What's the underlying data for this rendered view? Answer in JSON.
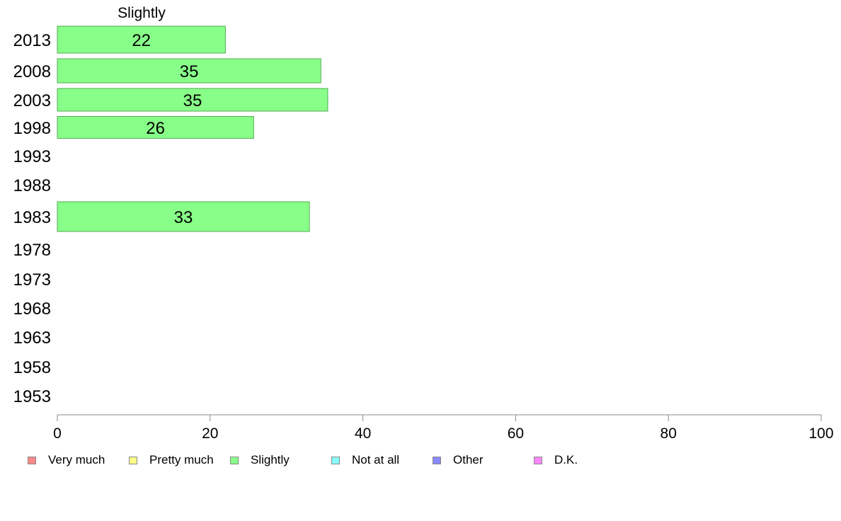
{
  "chart_data": {
    "type": "bar",
    "orientation": "horizontal",
    "series_title": "Slightly",
    "categories": [
      "2013",
      "2008",
      "2003",
      "1998",
      "1993",
      "1988",
      "1983",
      "1978",
      "1973",
      "1968",
      "1963",
      "1958",
      "1953"
    ],
    "series": [
      {
        "name": "Slightly",
        "color": "#88ff88",
        "values": [
          22,
          34.5,
          35.4,
          25.7,
          null,
          null,
          33,
          null,
          null,
          null,
          null,
          null,
          null
        ]
      }
    ],
    "value_labels": [
      "22",
      "35",
      "35",
      "26",
      "",
      "",
      "33",
      "",
      "",
      "",
      "",
      "",
      ""
    ],
    "xlim": [
      0,
      100
    ],
    "xticks": [
      0,
      20,
      40,
      60,
      80,
      100
    ],
    "xtick_labels": [
      "0",
      "20",
      "40",
      "60",
      "80",
      "100"
    ],
    "grid": false,
    "legend_position": "bottom",
    "legend": [
      {
        "label": "Very much",
        "color": "#ff8888"
      },
      {
        "label": "Pretty much",
        "color": "#ffff88"
      },
      {
        "label": "Slightly",
        "color": "#88ff88"
      },
      {
        "label": "Not at all",
        "color": "#88ffff"
      },
      {
        "label": "Other",
        "color": "#8888ff"
      },
      {
        "label": "D.K.",
        "color": "#ff88ff"
      }
    ]
  }
}
